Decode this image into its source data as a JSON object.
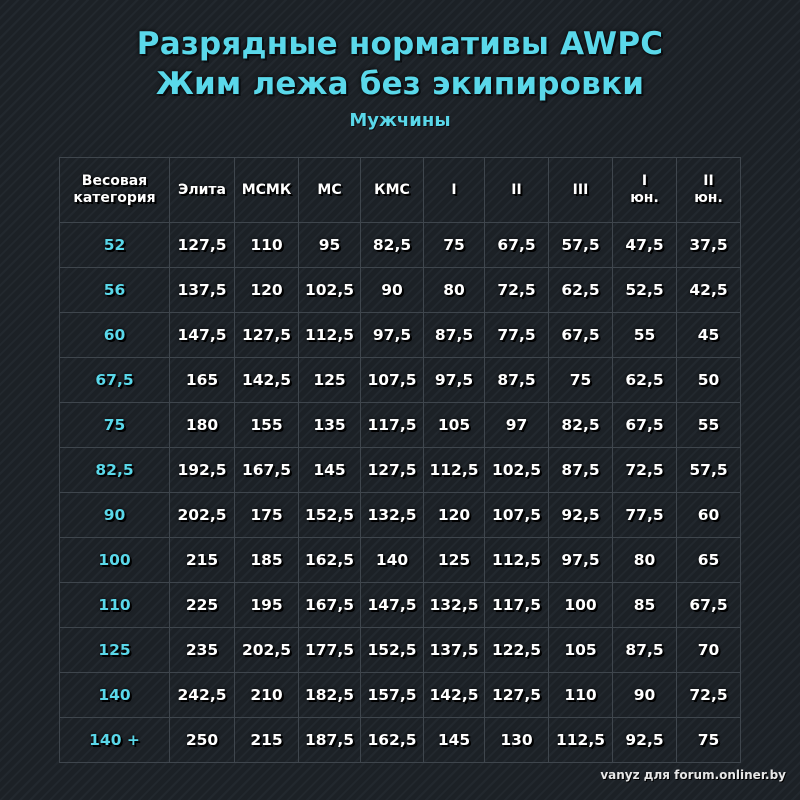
{
  "title_line1": "Разрядные нормативы AWPC",
  "title_line2": "Жим лежа без экипировки",
  "subtitle": "Мужчины",
  "colors": {
    "accent": "#5ad8ea",
    "text": "#ffffff",
    "background": "#1c2126",
    "grid": "#3f464d"
  },
  "table": {
    "headers": [
      [
        "Весовая",
        "категория"
      ],
      [
        "Элита"
      ],
      [
        "МСМК"
      ],
      [
        "МС"
      ],
      [
        "КМС"
      ],
      [
        "I"
      ],
      [
        "II"
      ],
      [
        "III"
      ],
      [
        "I",
        "юн."
      ],
      [
        "II",
        "юн."
      ]
    ],
    "rows": [
      [
        "52",
        "127,5",
        "110",
        "95",
        "82,5",
        "75",
        "67,5",
        "57,5",
        "47,5",
        "37,5"
      ],
      [
        "56",
        "137,5",
        "120",
        "102,5",
        "90",
        "80",
        "72,5",
        "62,5",
        "52,5",
        "42,5"
      ],
      [
        "60",
        "147,5",
        "127,5",
        "112,5",
        "97,5",
        "87,5",
        "77,5",
        "67,5",
        "55",
        "45"
      ],
      [
        "67,5",
        "165",
        "142,5",
        "125",
        "107,5",
        "97,5",
        "87,5",
        "75",
        "62,5",
        "50"
      ],
      [
        "75",
        "180",
        "155",
        "135",
        "117,5",
        "105",
        "97",
        "82,5",
        "67,5",
        "55"
      ],
      [
        "82,5",
        "192,5",
        "167,5",
        "145",
        "127,5",
        "112,5",
        "102,5",
        "87,5",
        "72,5",
        "57,5"
      ],
      [
        "90",
        "202,5",
        "175",
        "152,5",
        "132,5",
        "120",
        "107,5",
        "92,5",
        "77,5",
        "60"
      ],
      [
        "100",
        "215",
        "185",
        "162,5",
        "140",
        "125",
        "112,5",
        "97,5",
        "80",
        "65"
      ],
      [
        "110",
        "225",
        "195",
        "167,5",
        "147,5",
        "132,5",
        "117,5",
        "100",
        "85",
        "67,5"
      ],
      [
        "125",
        "235",
        "202,5",
        "177,5",
        "152,5",
        "137,5",
        "122,5",
        "105",
        "87,5",
        "70"
      ],
      [
        "140",
        "242,5",
        "210",
        "182,5",
        "157,5",
        "142,5",
        "127,5",
        "110",
        "90",
        "72,5"
      ],
      [
        "140 +",
        "250",
        "215",
        "187,5",
        "162,5",
        "145",
        "130",
        "112,5",
        "92,5",
        "75"
      ]
    ]
  },
  "footer": "vanyz для forum.onliner.by"
}
